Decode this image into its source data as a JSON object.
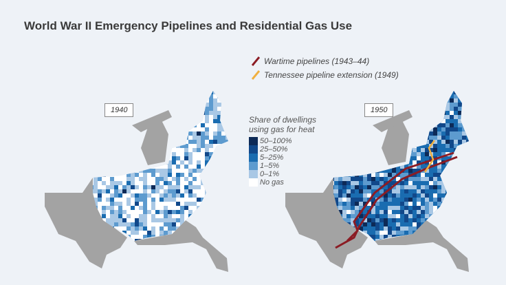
{
  "title": "World War II Emergency Pipelines and Residential Gas Use",
  "maps": [
    {
      "year": "1940"
    },
    {
      "year": "1950"
    }
  ],
  "legend": {
    "pipelines": [
      {
        "label": "Wartime pipelines (1943–44)",
        "color": "#8b1c24"
      },
      {
        "label": "Tennessee pipeline extension (1949)",
        "color": "#f0b040"
      }
    ],
    "scale_title_1": "Share of dwellings",
    "scale_title_2": "using gas for heat",
    "bins": [
      {
        "label": "50–100%",
        "color": "#0d2a57"
      },
      {
        "label": "25–50%",
        "color": "#11488a"
      },
      {
        "label": "5–25%",
        "color": "#1a6cb0"
      },
      {
        "label": "1–5%",
        "color": "#5d9bcf"
      },
      {
        "label": "0–1%",
        "color": "#a9c8e5"
      },
      {
        "label": "No gas",
        "color": "#ffffff"
      }
    ]
  }
}
